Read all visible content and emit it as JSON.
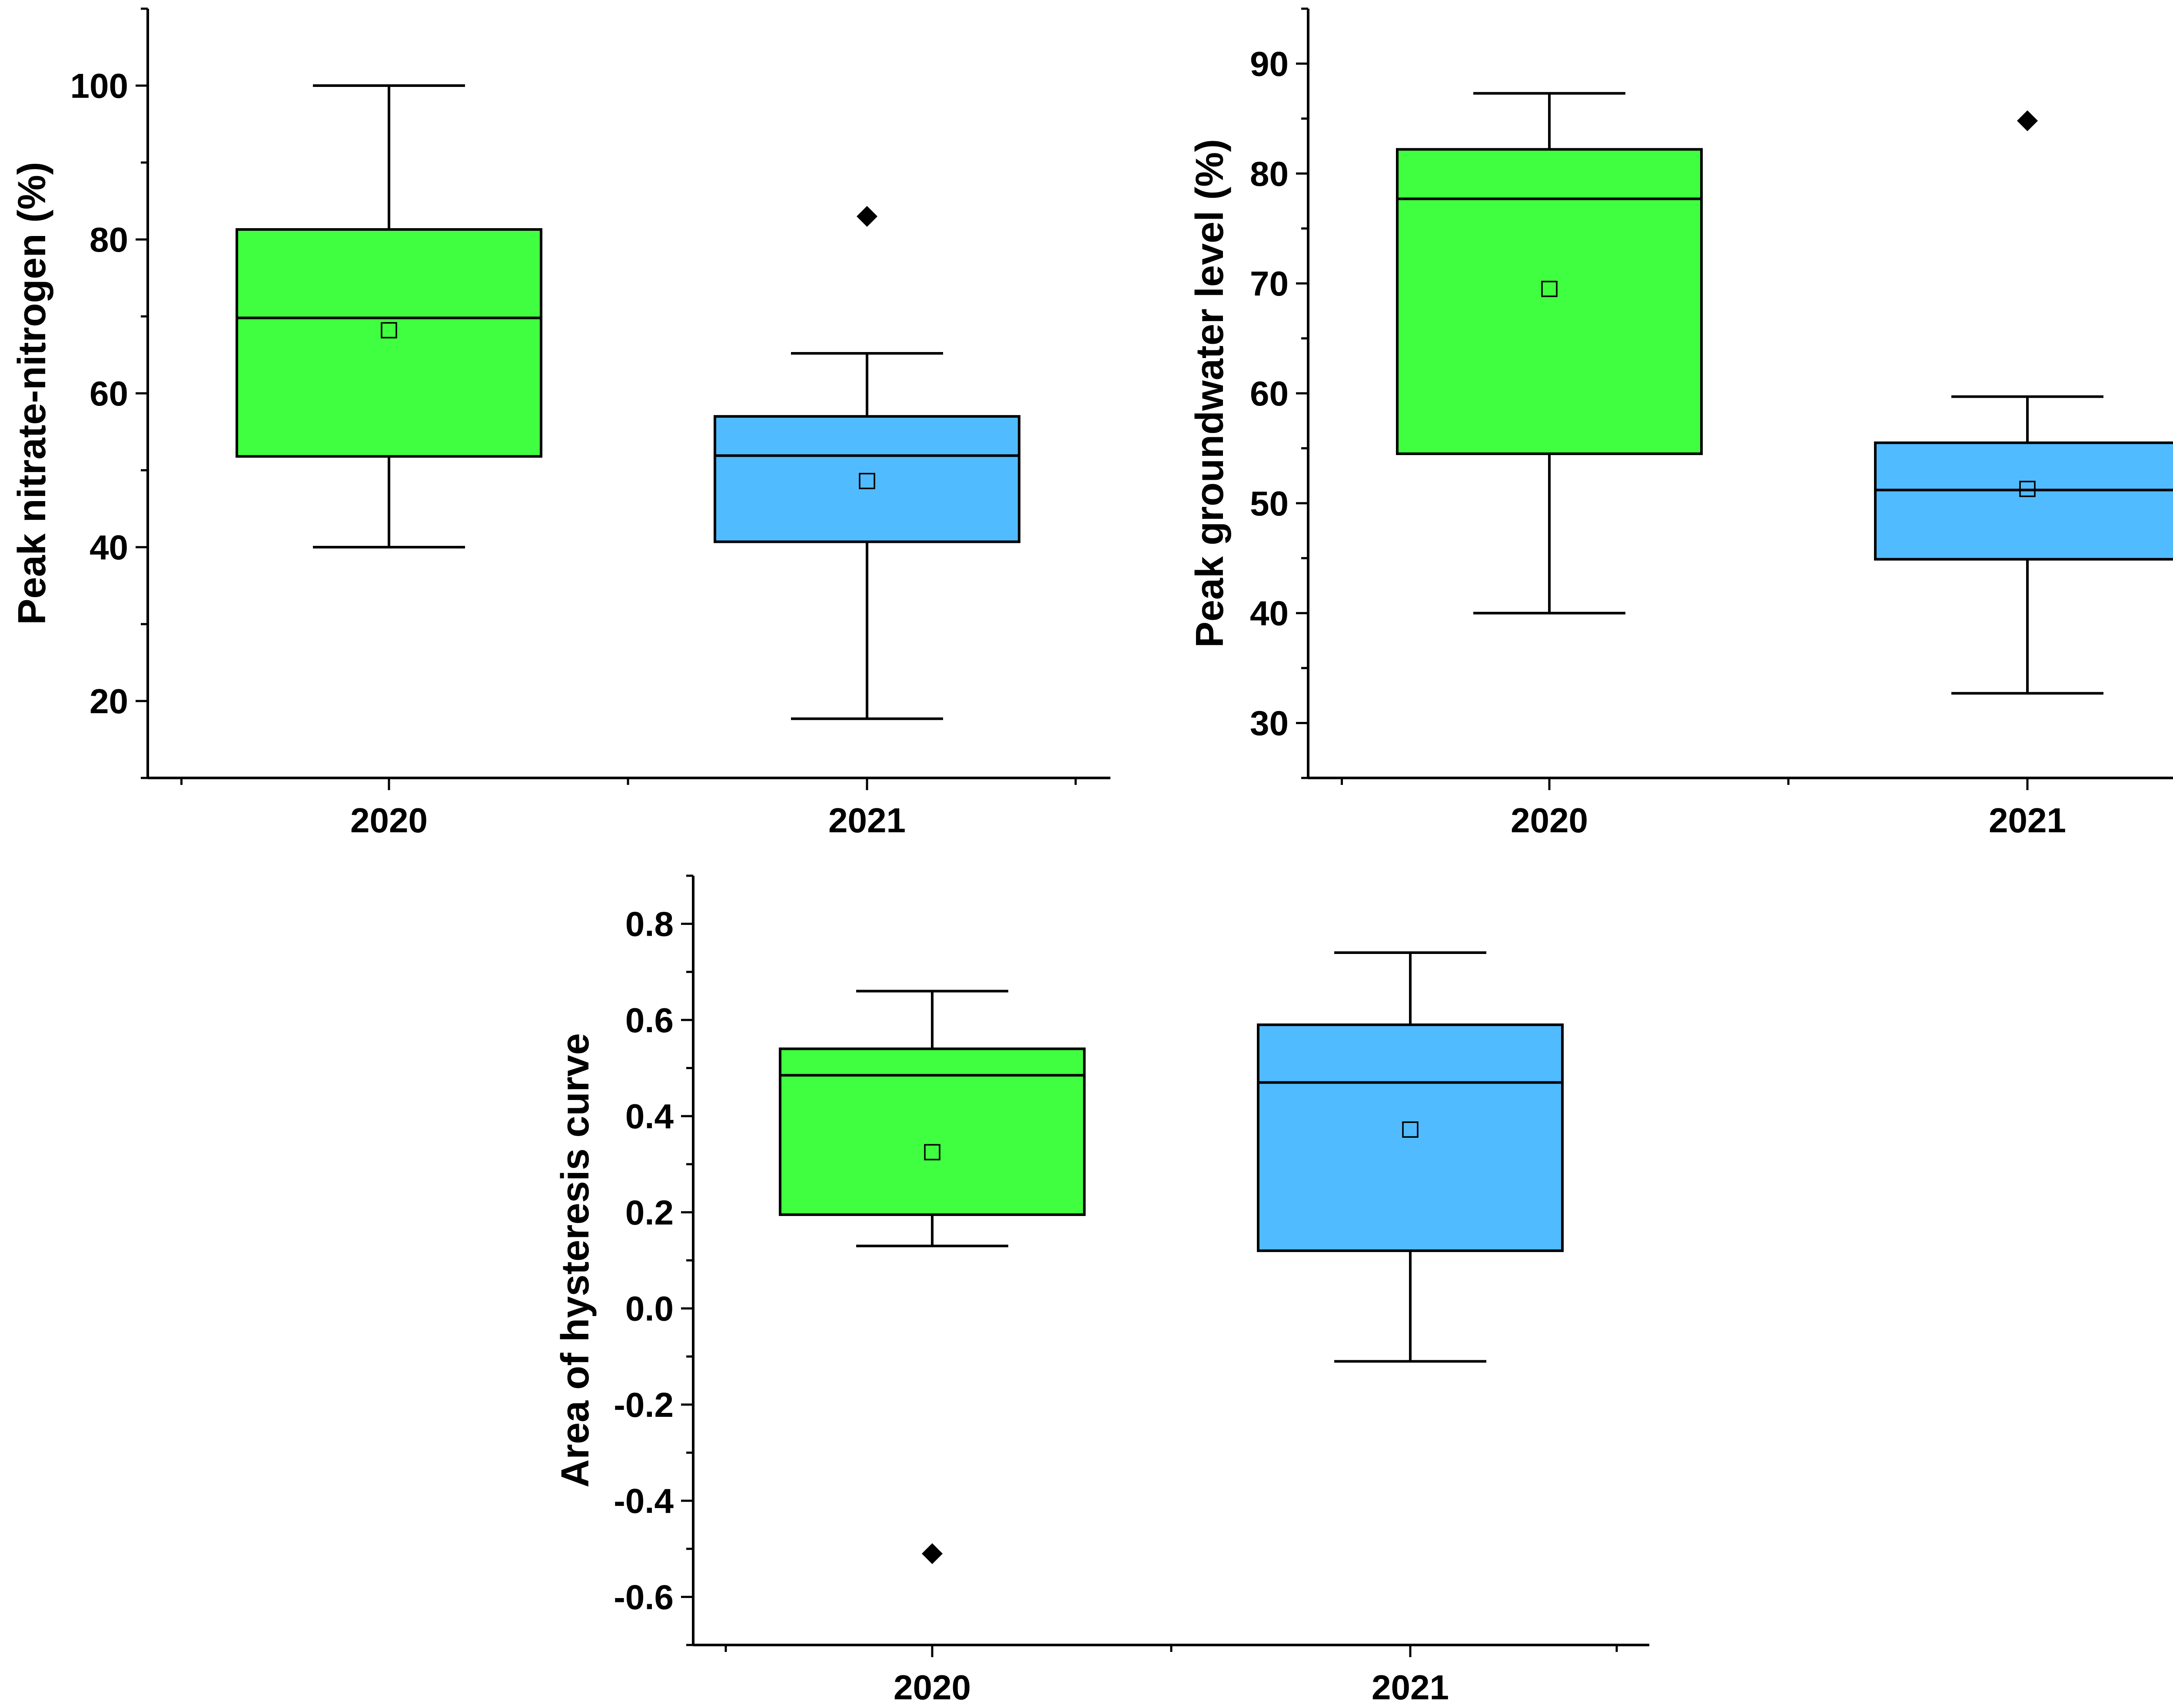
{
  "chart_data": [
    {
      "type": "box",
      "xlabel": "",
      "ylabel": "Peak nitrate-nitrogen (%)",
      "ylim": [
        10,
        110
      ],
      "yticks": [
        20,
        40,
        60,
        80,
        100
      ],
      "ytick_labels": [
        "20",
        "40",
        "60",
        "80",
        "100"
      ],
      "categories": [
        "2020",
        "2021"
      ],
      "colors": [
        "#40ff40",
        "#50bbff"
      ],
      "boxes": [
        {
          "category": "2020",
          "whisker_low": 40,
          "q1": 51.8,
          "median": 69.8,
          "q3": 81.3,
          "whisker_high": 100,
          "mean": 68.2,
          "outliers": []
        },
        {
          "category": "2021",
          "whisker_low": 17.7,
          "q1": 40.7,
          "median": 51.9,
          "q3": 57,
          "whisker_high": 65.2,
          "mean": 48.6,
          "outliers": [
            83
          ]
        }
      ]
    },
    {
      "type": "box",
      "xlabel": "",
      "ylabel": "Peak groundwater level (%)",
      "ylim": [
        25,
        95
      ],
      "yticks": [
        30,
        40,
        50,
        60,
        70,
        80,
        90
      ],
      "ytick_labels": [
        "30",
        "40",
        "50",
        "60",
        "70",
        "80",
        "90"
      ],
      "categories": [
        "2020",
        "2021"
      ],
      "colors": [
        "#40ff40",
        "#50bbff"
      ],
      "boxes": [
        {
          "category": "2020",
          "whisker_low": 40,
          "q1": 54.5,
          "median": 77.7,
          "q3": 82.2,
          "whisker_high": 87.3,
          "mean": 69.5,
          "outliers": []
        },
        {
          "category": "2021",
          "whisker_low": 32.7,
          "q1": 44.9,
          "median": 51.2,
          "q3": 55.5,
          "whisker_high": 59.7,
          "mean": 51.3,
          "outliers": [
            84.8
          ]
        }
      ]
    },
    {
      "type": "box",
      "xlabel": "",
      "ylabel": "Area of hysteresis curve",
      "ylim": [
        -0.7,
        0.9
      ],
      "yticks": [
        -0.6,
        -0.4,
        -0.2,
        0.0,
        0.2,
        0.4,
        0.6,
        0.8
      ],
      "ytick_labels": [
        "-0.6",
        "-0.4",
        "-0.2",
        "0.0",
        "0.2",
        "0.4",
        "0.6",
        "0.8"
      ],
      "categories": [
        "2020",
        "2021"
      ],
      "colors": [
        "#40ff40",
        "#50bbff"
      ],
      "boxes": [
        {
          "category": "2020",
          "whisker_low": 0.13,
          "q1": 0.195,
          "median": 0.485,
          "q3": 0.54,
          "whisker_high": 0.66,
          "mean": 0.325,
          "outliers": [
            -0.51
          ]
        },
        {
          "category": "2021",
          "whisker_low": -0.11,
          "q1": 0.12,
          "median": 0.47,
          "q3": 0.59,
          "whisker_high": 0.74,
          "mean": 0.372,
          "outliers": []
        }
      ]
    }
  ]
}
